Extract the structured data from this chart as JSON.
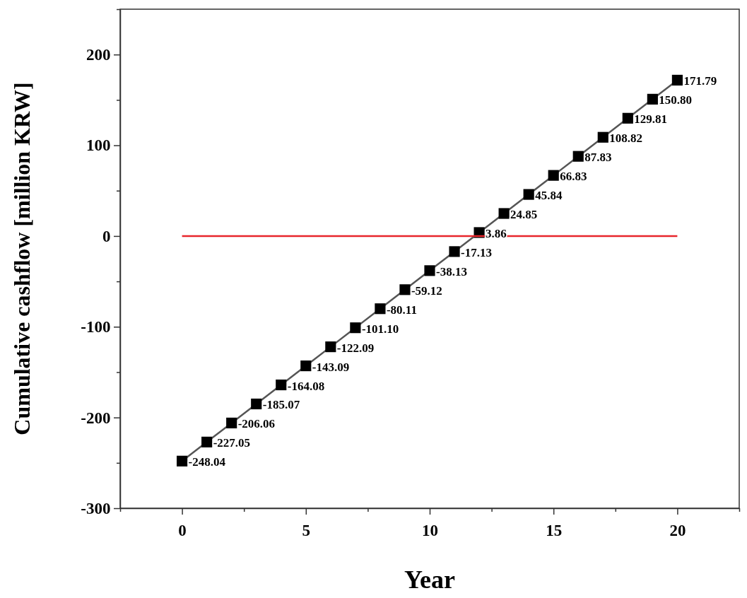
{
  "chart_data": {
    "type": "line",
    "xlabel": "Year",
    "ylabel": "Cumulative cashflow [million KRW]",
    "x": [
      0,
      1,
      2,
      3,
      4,
      5,
      6,
      7,
      8,
      9,
      10,
      11,
      12,
      13,
      14,
      15,
      16,
      17,
      18,
      19,
      20
    ],
    "series": [
      {
        "color": "#555555",
        "marker": "square",
        "value_labels": [
          "-248.04",
          "-227.05",
          "-206.06",
          "-185.07",
          "-164.08",
          "-143.09",
          "-122.09",
          "-101.10",
          "-80.11",
          "-59.12",
          "-38.13",
          "-17.13",
          "3.86",
          "24.85",
          "45.84",
          "66.83",
          "87.83",
          "108.82",
          "129.81",
          "150.80",
          "171.79"
        ],
        "values": [
          -248.04,
          -227.05,
          -206.06,
          -185.07,
          -164.08,
          -143.09,
          -122.09,
          -101.1,
          -80.11,
          -59.12,
          -38.13,
          -17.13,
          3.86,
          24.85,
          45.84,
          66.83,
          87.83,
          108.82,
          129.81,
          150.8,
          171.79
        ]
      },
      {
        "color": "#e8262c",
        "marker": "none",
        "x": [
          0,
          20
        ],
        "values": [
          0,
          0
        ]
      }
    ],
    "xlim": [
      -2.5,
      22.5
    ],
    "xticks": [
      {
        "value": -2.5,
        "label": null
      },
      0,
      {
        "value": 2.5,
        "label": null
      },
      5,
      {
        "value": 7.5,
        "label": null
      },
      10,
      {
        "value": 12.5,
        "label": null
      },
      15,
      {
        "value": 17.5,
        "label": null
      },
      20,
      {
        "value": 22.5,
        "label": null
      }
    ],
    "ylim": [
      -300,
      250
    ],
    "yticks": [
      -300,
      {
        "value": -250,
        "label": null
      },
      -200,
      {
        "value": -150,
        "label": null
      },
      -100,
      {
        "value": -50,
        "label": null
      },
      0,
      {
        "value": 50,
        "label": null
      },
      100,
      {
        "value": 150,
        "label": null
      },
      200,
      {
        "value": 250,
        "label": null
      }
    ],
    "grid": false
  }
}
